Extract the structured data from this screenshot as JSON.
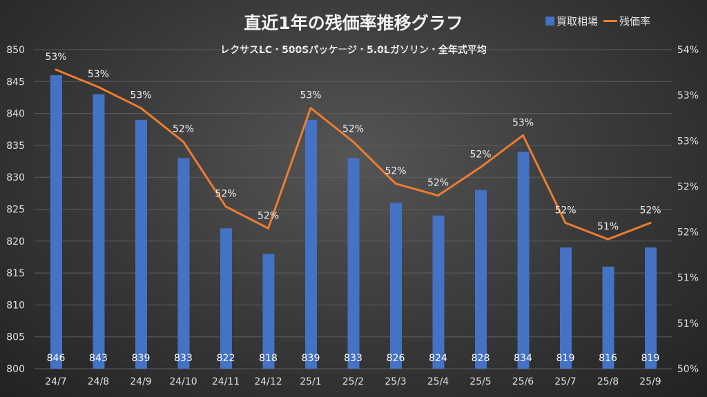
{
  "chart_data": {
    "type": "bar+line",
    "title": "直近1年の残価率推移グラフ",
    "subtitle": "レクサスLC・500Sパッケージ・5.0Lガソリン・全年式平均",
    "categories": [
      "24/7",
      "24/8",
      "24/9",
      "24/10",
      "24/11",
      "24/12",
      "25/1",
      "25/2",
      "25/3",
      "25/4",
      "25/5",
      "25/6",
      "25/7",
      "25/8",
      "25/9"
    ],
    "series": [
      {
        "name": "買取相場",
        "type": "bar",
        "axis": "left",
        "color": "#4472c4",
        "values": [
          846,
          843,
          839,
          833,
          822,
          818,
          839,
          833,
          826,
          824,
          828,
          834,
          819,
          816,
          819
        ],
        "labels": [
          "846",
          "843",
          "839",
          "833",
          "822",
          "818",
          "839",
          "833",
          "826",
          "824",
          "828",
          "834",
          "819",
          "816",
          "819"
        ]
      },
      {
        "name": "残価率",
        "type": "line",
        "axis": "right",
        "color": "#ed7d31",
        "values": [
          53.28,
          53.09,
          52.86,
          52.49,
          51.78,
          51.54,
          52.86,
          52.49,
          52.03,
          51.9,
          52.21,
          52.56,
          51.6,
          51.42,
          51.6
        ],
        "labels": [
          "53%",
          "53%",
          "53%",
          "52%",
          "52%",
          "52%",
          "53%",
          "52%",
          "52%",
          "52%",
          "52%",
          "53%",
          "52%",
          "51%",
          "52%"
        ]
      }
    ],
    "y_left": {
      "min": 800,
      "max": 850,
      "step": 5,
      "ticks": [
        "800",
        "805",
        "810",
        "815",
        "820",
        "825",
        "830",
        "835",
        "840",
        "845",
        "850"
      ]
    },
    "y_right": {
      "min": 50,
      "max": 53.5,
      "step": 0.5,
      "ticks": [
        "50%",
        "51%",
        "51%",
        "52%",
        "52%",
        "53%",
        "53%",
        "54%"
      ]
    },
    "legend_position": "top-right",
    "grid": true
  }
}
